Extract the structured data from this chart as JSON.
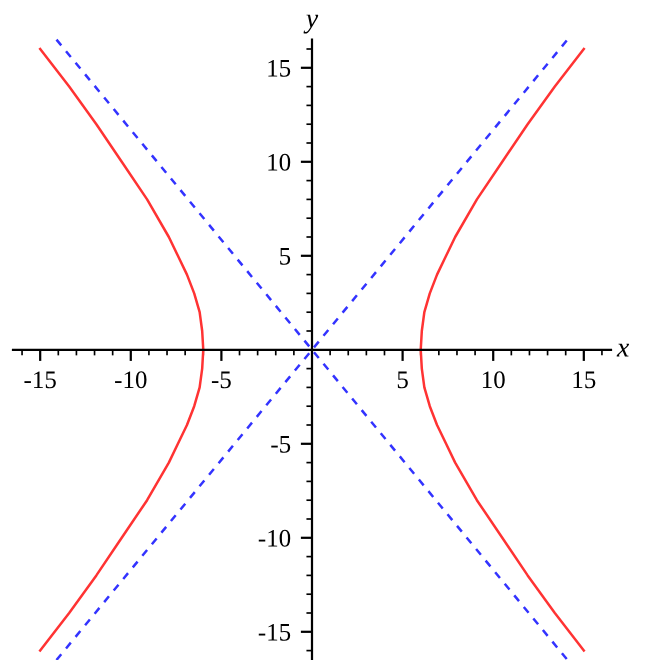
{
  "chart_data": {
    "type": "line",
    "xlabel": "x",
    "ylabel": "y",
    "xlim": [
      -16.5,
      16.5
    ],
    "ylim": [
      -16.5,
      16.5
    ],
    "xticks": [
      {
        "value": -16,
        "label": null
      },
      -15,
      {
        "value": -14,
        "label": null
      },
      {
        "value": -13,
        "label": null
      },
      {
        "value": -12,
        "label": null
      },
      {
        "value": -11,
        "label": null
      },
      -10,
      {
        "value": -9,
        "label": null
      },
      {
        "value": -8,
        "label": null
      },
      {
        "value": -7,
        "label": null
      },
      {
        "value": -6,
        "label": null
      },
      -5,
      {
        "value": -4,
        "label": null
      },
      {
        "value": -3,
        "label": null
      },
      {
        "value": -2,
        "label": null
      },
      {
        "value": -1,
        "label": null
      },
      {
        "value": 1,
        "label": null
      },
      {
        "value": 2,
        "label": null
      },
      {
        "value": 3,
        "label": null
      },
      {
        "value": 4,
        "label": null
      },
      5,
      {
        "value": 6,
        "label": null
      },
      {
        "value": 7,
        "label": null
      },
      {
        "value": 8,
        "label": null
      },
      {
        "value": 9,
        "label": null
      },
      10,
      {
        "value": 11,
        "label": null
      },
      {
        "value": 12,
        "label": null
      },
      {
        "value": 13,
        "label": null
      },
      {
        "value": 14,
        "label": null
      },
      15,
      {
        "value": 16,
        "label": null
      }
    ],
    "yticks": [
      {
        "value": -16,
        "label": null
      },
      -15,
      {
        "value": -14,
        "label": null
      },
      {
        "value": -13,
        "label": null
      },
      {
        "value": -12,
        "label": null
      },
      {
        "value": -11,
        "label": null
      },
      -10,
      {
        "value": -9,
        "label": null
      },
      {
        "value": -8,
        "label": null
      },
      {
        "value": -7,
        "label": null
      },
      {
        "value": -6,
        "label": null
      },
      -5,
      {
        "value": -4,
        "label": null
      },
      {
        "value": -3,
        "label": null
      },
      {
        "value": -2,
        "label": null
      },
      {
        "value": -1,
        "label": null
      },
      {
        "value": 1,
        "label": null
      },
      {
        "value": 2,
        "label": null
      },
      {
        "value": 3,
        "label": null
      },
      {
        "value": 4,
        "label": null
      },
      5,
      {
        "value": 6,
        "label": null
      },
      {
        "value": 7,
        "label": null
      },
      {
        "value": 8,
        "label": null
      },
      {
        "value": 9,
        "label": null
      },
      10,
      {
        "value": 11,
        "label": null
      },
      {
        "value": 12,
        "label": null
      },
      {
        "value": 13,
        "label": null
      },
      {
        "value": 14,
        "label": null
      },
      15,
      {
        "value": 16,
        "label": null
      }
    ],
    "grid": false,
    "legend": false,
    "series": [
      {
        "color": "#ff3333",
        "line_style": "solid",
        "x": [
          15.0,
          13.4,
          11.9,
          10.5,
          9.1,
          7.9,
          7.4,
          6.9,
          6.5,
          6.2,
          6.06,
          6.0,
          6.06,
          6.2,
          6.5,
          6.9,
          7.4,
          7.9,
          9.1,
          10.5,
          11.9,
          13.4,
          15.0
        ],
        "values": [
          -16,
          -14,
          -12,
          -10,
          -8,
          -6,
          -5,
          -4,
          -3,
          -2,
          -1,
          0,
          1,
          2,
          3,
          4,
          5,
          6,
          8,
          10,
          12,
          14,
          16
        ]
      },
      {
        "color": "#ff3333",
        "line_style": "solid",
        "x": [
          -15.0,
          -13.4,
          -11.9,
          -10.5,
          -9.1,
          -7.9,
          -7.4,
          -6.9,
          -6.5,
          -6.2,
          -6.06,
          -6.0,
          -6.06,
          -6.2,
          -6.5,
          -6.9,
          -7.4,
          -7.9,
          -9.1,
          -10.5,
          -11.9,
          -13.4,
          -15.0
        ],
        "values": [
          -16,
          -14,
          -12,
          -10,
          -8,
          -6,
          -5,
          -4,
          -3,
          -2,
          -1,
          0,
          1,
          2,
          3,
          4,
          5,
          6,
          8,
          10,
          12,
          14,
          16
        ]
      },
      {
        "color": "#3333ff",
        "line_style": "dashed",
        "x": [
          -14.1,
          0,
          14.1
        ],
        "values": [
          -16.5,
          0,
          16.5
        ]
      },
      {
        "color": "#3333ff",
        "line_style": "dashed",
        "x": [
          -14.1,
          0,
          14.1
        ],
        "values": [
          16.5,
          0,
          -16.5
        ]
      }
    ]
  }
}
